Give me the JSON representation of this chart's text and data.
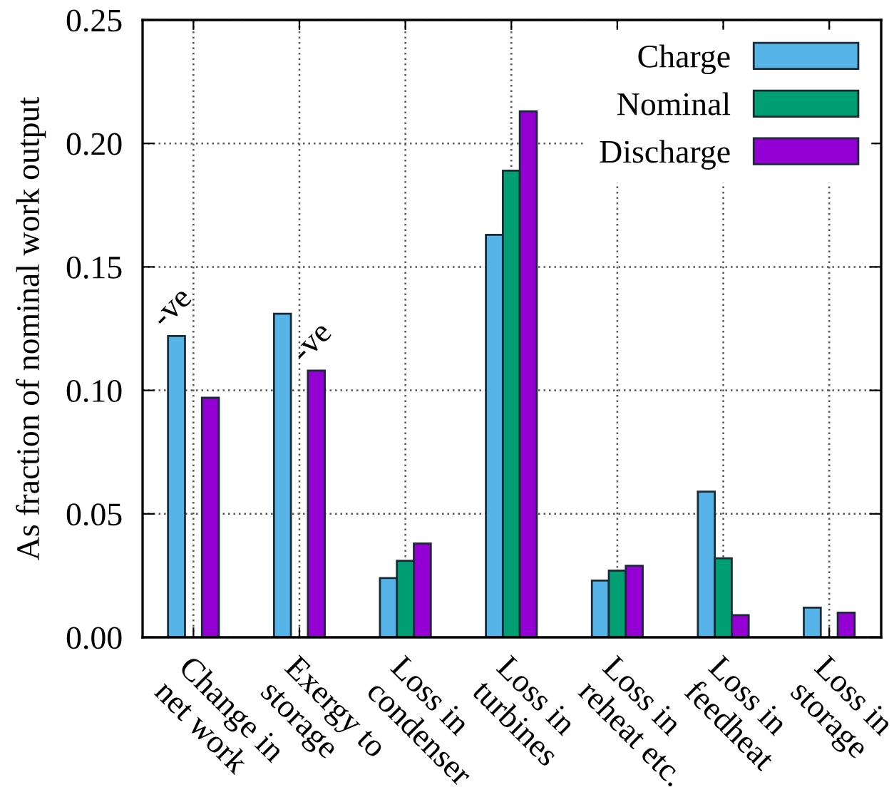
{
  "chart_data": {
    "type": "bar",
    "ylabel": "As fraction of nominal work output",
    "categories": [
      "Change in\nnet work",
      "Exergy to\nstorage",
      "Loss in\ncondenser",
      "Loss in\nturbines",
      "Loss in\nreheat etc.",
      "Loss in\nfeedheat",
      "Loss in\nstorage"
    ],
    "series": [
      {
        "name": "Charge",
        "color": "#56b4e9",
        "values": [
          0.122,
          0.131,
          0.024,
          0.163,
          0.023,
          0.059,
          0.012
        ],
        "value_labels": [
          "-ve",
          null,
          null,
          null,
          null,
          null,
          null
        ]
      },
      {
        "name": "Nominal",
        "color": "#009e73",
        "values": [
          null,
          null,
          0.031,
          0.189,
          0.027,
          0.032,
          null
        ]
      },
      {
        "name": "Discharge",
        "color": "#9400d3",
        "values": [
          0.097,
          0.108,
          0.038,
          0.213,
          0.029,
          0.009,
          0.01
        ],
        "value_labels": [
          null,
          "-ve",
          null,
          null,
          null,
          null,
          null
        ]
      }
    ],
    "ylim": [
      0,
      0.25
    ],
    "yticks": [
      {
        "value": 0,
        "label": "0.00"
      },
      {
        "value": 0.05,
        "label": "0.05"
      },
      {
        "value": 0.1,
        "label": "0.10"
      },
      {
        "value": 0.15,
        "label": "0.15"
      },
      {
        "value": 0.2,
        "label": "0.20"
      },
      {
        "value": 0.25,
        "label": "0.25"
      }
    ],
    "grid": true,
    "legend": "top right"
  }
}
